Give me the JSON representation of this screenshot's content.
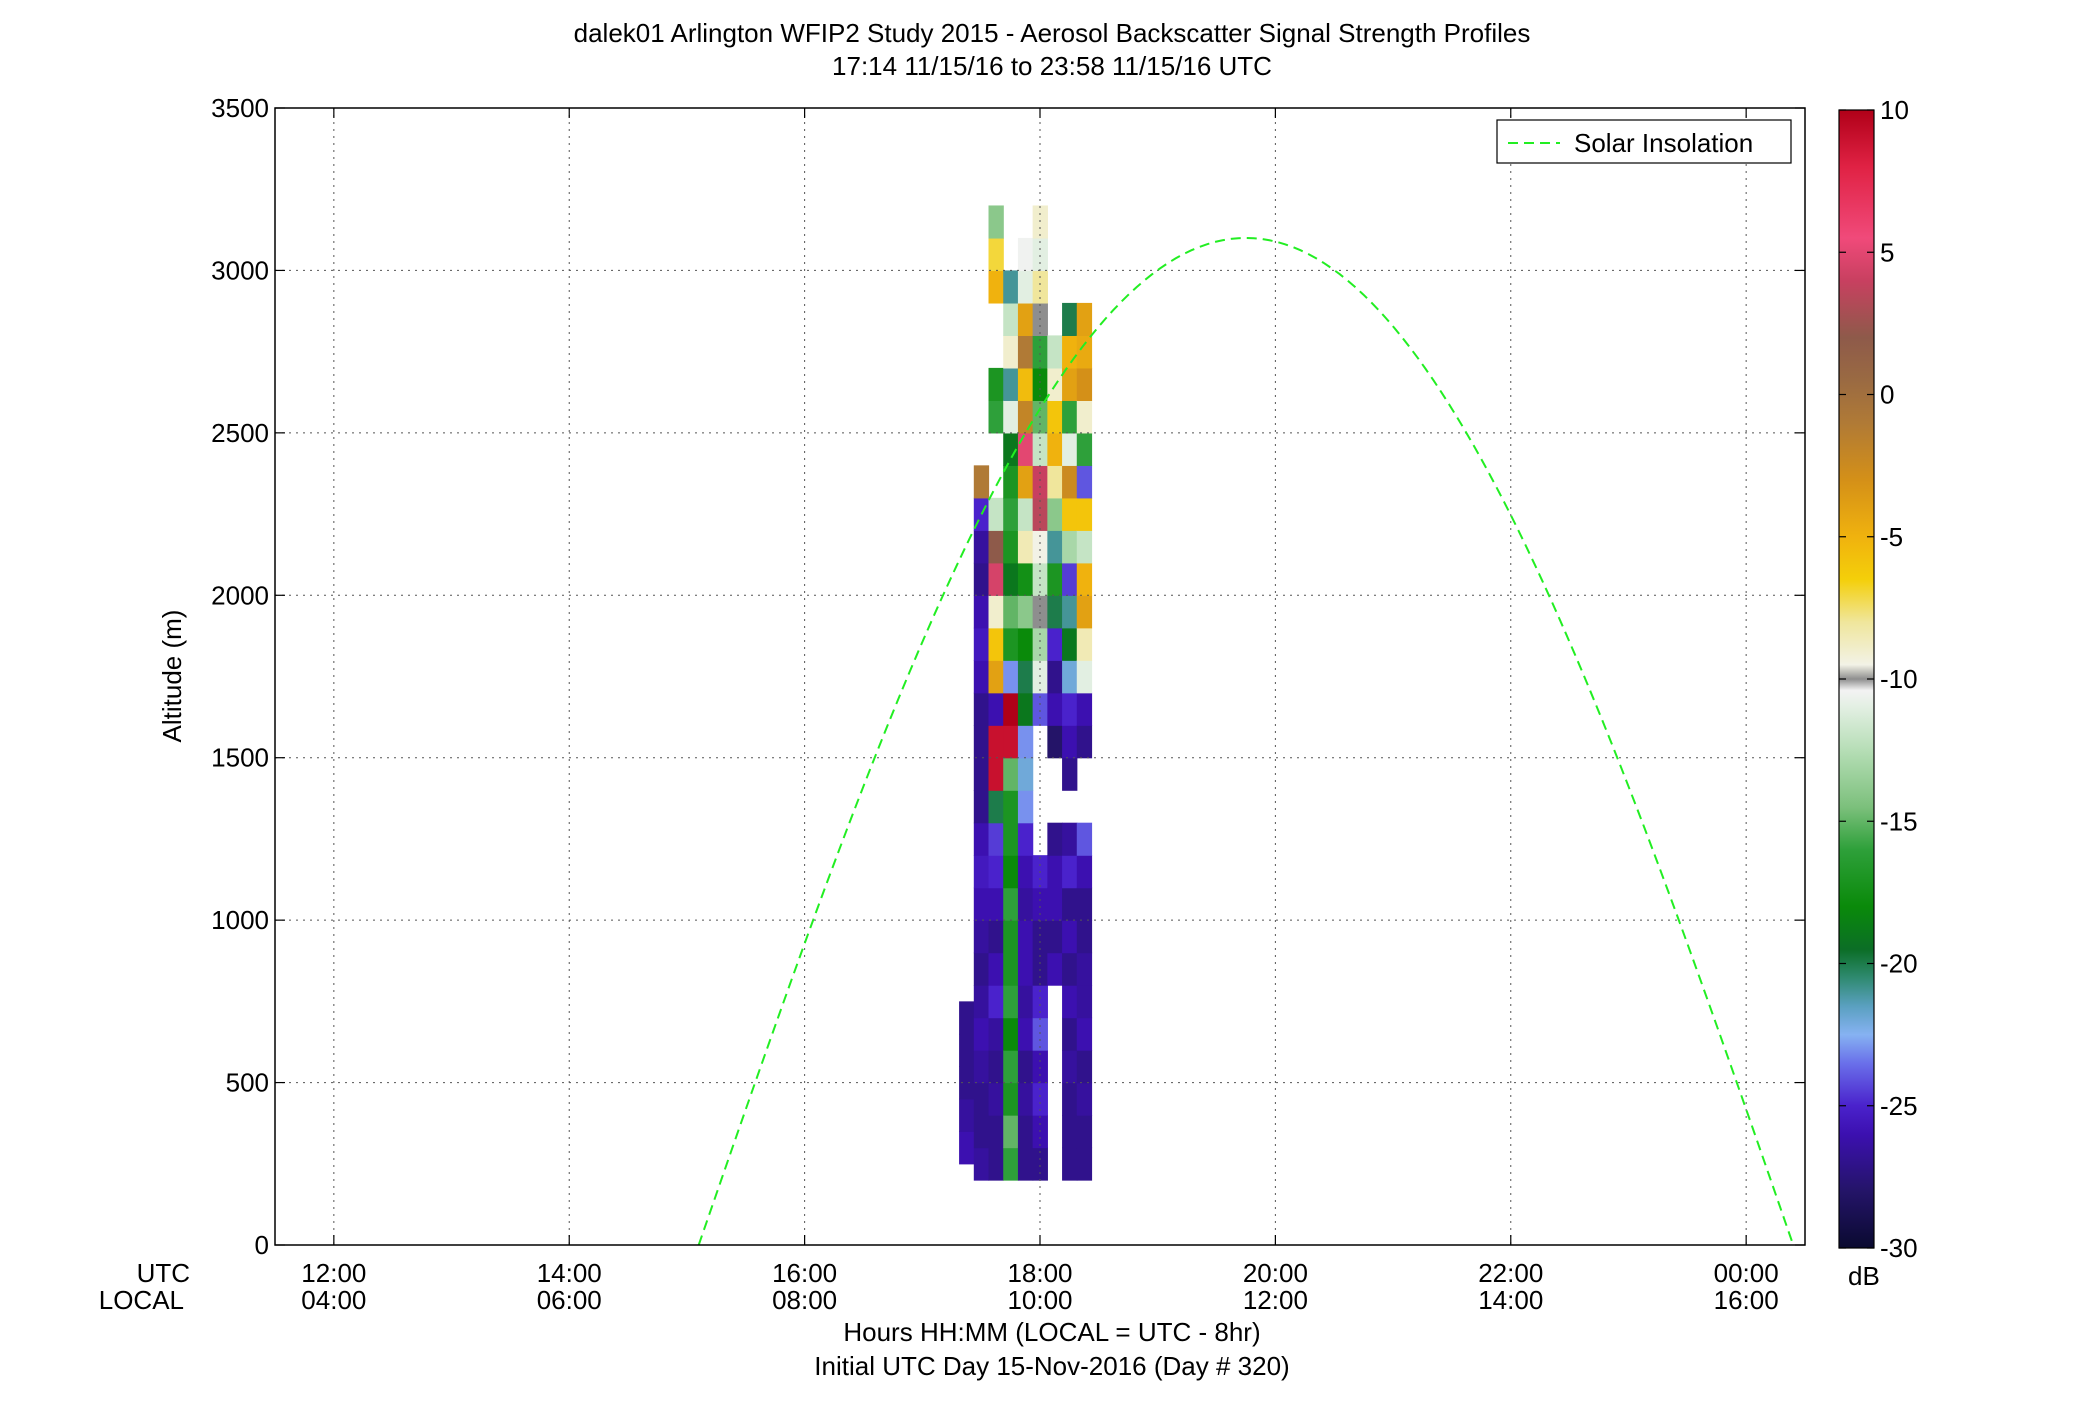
{
  "title": {
    "line1": "dalek01 Arlington WFIP2 Study 2015 - Aerosol Backscatter Signal Strength Profiles",
    "line2": "17:14 11/15/16 to 23:58 11/15/16  UTC"
  },
  "chart_data": {
    "type": "heatmap",
    "ylabel": "Altitude (m)",
    "xlabel": "Hours HH:MM  (LOCAL = UTC - 8hr)",
    "footer": "Initial UTC Day 15-Nov-2016 (Day # 320)",
    "x_row_labels": {
      "utc": "UTC",
      "local": "LOCAL"
    },
    "x_ticks": [
      {
        "utc_hours": 12,
        "utc": "12:00",
        "local": "04:00"
      },
      {
        "utc_hours": 14,
        "utc": "14:00",
        "local": "06:00"
      },
      {
        "utc_hours": 16,
        "utc": "16:00",
        "local": "08:00"
      },
      {
        "utc_hours": 18,
        "utc": "18:00",
        "local": "10:00"
      },
      {
        "utc_hours": 20,
        "utc": "20:00",
        "local": "12:00"
      },
      {
        "utc_hours": 22,
        "utc": "22:00",
        "local": "14:00"
      },
      {
        "utc_hours": 24,
        "utc": "00:00",
        "local": "16:00"
      }
    ],
    "xlim_utc_hours": [
      11.5,
      24.5
    ],
    "y_ticks": [
      0,
      500,
      1000,
      1500,
      2000,
      2500,
      3000,
      3500
    ],
    "ylim": [
      0,
      3500
    ],
    "grid": true,
    "legend": {
      "entries": [
        "Solar Insolation"
      ],
      "position": "top-right"
    },
    "colorbar": {
      "label": "dB",
      "range": [
        -30,
        10
      ],
      "ticks": [
        10,
        5,
        0,
        -5,
        -10,
        -15,
        -20,
        -25,
        -30
      ],
      "stops": [
        [
          -30,
          "#0a0a30"
        ],
        [
          -28,
          "#241468"
        ],
        [
          -26,
          "#3c10b0"
        ],
        [
          -25,
          "#4a22cc"
        ],
        [
          -23.5,
          "#6a70ea"
        ],
        [
          -22.5,
          "#86b2f2"
        ],
        [
          -21.5,
          "#5aa0c0"
        ],
        [
          -20.5,
          "#2f8a70"
        ],
        [
          -19.5,
          "#0b6e26"
        ],
        [
          -18,
          "#0a8a0a"
        ],
        [
          -16,
          "#2ea03a"
        ],
        [
          -14.5,
          "#7cc07c"
        ],
        [
          -12.5,
          "#b6deb6"
        ],
        [
          -11,
          "#e2efe2"
        ],
        [
          -10.4,
          "#f3f3f3"
        ],
        [
          -10,
          "#8e8e8e"
        ],
        [
          -9.5,
          "#f2f2e6"
        ],
        [
          -8,
          "#f0e69c"
        ],
        [
          -6.5,
          "#f4cf0a"
        ],
        [
          -5,
          "#f0b20e"
        ],
        [
          -3,
          "#d49018"
        ],
        [
          -1,
          "#b07a36"
        ],
        [
          0.5,
          "#9a6a42"
        ],
        [
          2,
          "#8e5a4a"
        ],
        [
          4,
          "#c84060"
        ],
        [
          5.5,
          "#f04a7a"
        ],
        [
          8,
          "#e02244"
        ],
        [
          10,
          "#b00018"
        ]
      ]
    },
    "solar_insolation": {
      "start_utc_hours": 15.1,
      "end_utc_hours": 24.4,
      "peak_utc_hours": 19.75,
      "peak_altitude": 3100
    },
    "time_step_hours": 0.125,
    "altitude_step": 100,
    "columns": [
      {
        "utc_hours": 17.375,
        "ranges": [
          [
            250,
            900
          ]
        ],
        "values": [
          -26,
          -26.5,
          -27,
          -27,
          -27
        ]
      },
      {
        "utc_hours": 17.5,
        "ranges": [
          [
            200,
            2400
          ]
        ],
        "values": [
          -26.5,
          -27,
          -27,
          -26.5,
          -26,
          -26.5,
          -27,
          -26.5,
          -26,
          -25.5,
          -26,
          -27,
          -27,
          -27,
          -27,
          -26,
          -25.5,
          -26,
          -27,
          -26.5,
          -25,
          -1,
          1.5,
          -12
        ]
      },
      {
        "utc_hours": 17.625,
        "ranges": [
          [
            200,
            2300
          ],
          [
            2500,
            2700
          ],
          [
            2900,
            3200
          ]
        ],
        "values": [
          -27,
          -27,
          -26.5,
          -27,
          -26.5,
          -25,
          -26,
          -27,
          -26,
          -25,
          -24.5,
          -20,
          9,
          9,
          -26,
          -4,
          -6,
          -9,
          4.5,
          2,
          -12,
          -16,
          -17,
          -5,
          -7,
          -14,
          -2
        ]
      },
      {
        "utc_hours": 17.75,
        "ranges": [
          [
            200,
            3000
          ]
        ],
        "values": [
          -16,
          -15,
          -17,
          -16,
          -18,
          -16,
          -17,
          -17,
          -16,
          -18,
          -17,
          -17,
          -15,
          9,
          10,
          -23,
          -17,
          -15,
          -19,
          -17,
          -16,
          -17,
          -19,
          -11,
          -21,
          -9,
          -12,
          -21,
          -9,
          -24
        ]
      },
      {
        "utc_hours": 17.875,
        "ranges": [
          [
            200,
            3100
          ]
        ],
        "values": [
          -27,
          -27,
          -26.5,
          -27,
          -26,
          -26.5,
          -26,
          -26,
          -26.5,
          -26,
          -25,
          -23,
          -22,
          -23,
          -19,
          -20,
          -18,
          -14,
          -17.5,
          -8.5,
          -12,
          -4,
          5,
          -2,
          -5.5,
          -1,
          -4,
          -11,
          -10.5,
          -22,
          -26
        ]
      },
      {
        "utc_hours": 18.0,
        "ranges": [
          [
            200,
            1200
          ],
          [
            1600,
            3200
          ]
        ],
        "values": [
          -27,
          -26,
          -25,
          -26,
          -24,
          -25,
          -27,
          -27,
          -26,
          -25,
          -24,
          -11,
          -13,
          -10,
          -12,
          -9.5,
          3.5,
          4,
          -12,
          -15,
          -18,
          -16,
          -10,
          -8,
          -11,
          -9,
          -3,
          -4.5,
          -12,
          -18,
          -17,
          -21,
          -7
        ]
      },
      {
        "utc_hours": 18.125,
        "ranges": [
          [
            800,
            1300
          ],
          [
            1500,
            2800
          ]
        ],
        "values": [
          -26,
          -27,
          -26,
          -26,
          -27,
          -28,
          -26,
          -27,
          -25,
          -20,
          -17,
          -21,
          -14,
          -8,
          -5,
          -6,
          -9,
          -12,
          -11,
          -15,
          -14,
          -20,
          -13,
          -3
        ]
      },
      {
        "utc_hours": 18.25,
        "ranges": [
          [
            200,
            1300
          ],
          [
            1400,
            2900
          ]
        ],
        "values": [
          -27,
          -27,
          -27,
          -26.5,
          -27,
          -26,
          -27,
          -26,
          -27,
          -25,
          -26.5,
          -27,
          -26,
          -25,
          -22,
          -19,
          -21,
          -24.5,
          -13,
          -6,
          -2.5,
          -11,
          -16,
          -4,
          -5,
          -20,
          -12,
          -15,
          -24,
          -26
        ]
      },
      {
        "utc_hours": 18.375,
        "ranges": [
          [
            200,
            1300
          ],
          [
            1500,
            2900
          ]
        ],
        "values": [
          -27,
          -27,
          -26.5,
          -27,
          -26,
          -26.5,
          -26.5,
          -27,
          -27,
          -26,
          -24,
          -27,
          -26,
          -11,
          -8.5,
          -4,
          -5,
          -12,
          -6,
          -24,
          -16,
          -9,
          -3,
          -4.5,
          -4,
          -15,
          -16,
          -20,
          -27,
          -30
        ]
      }
    ]
  }
}
